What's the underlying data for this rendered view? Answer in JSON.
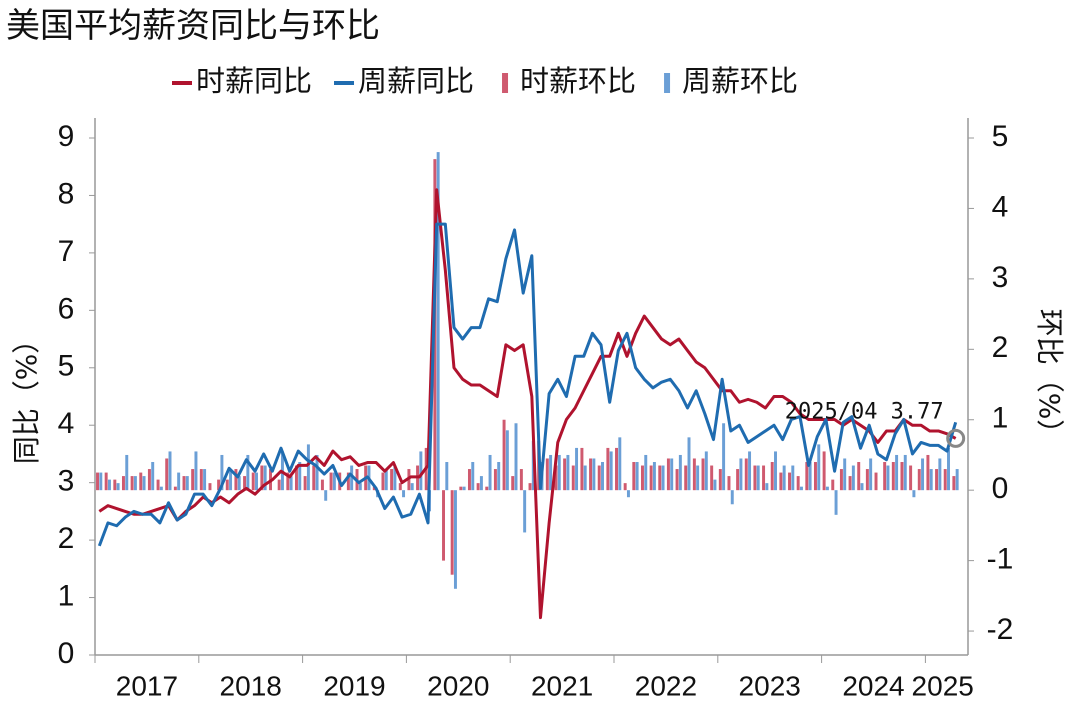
{
  "chart_data": {
    "type": "combo",
    "title": "美国平均薪资同比与环比",
    "ylabel": "同比（%）",
    "y2label": "环比（%）",
    "categories": [
      "2017",
      null,
      null,
      null,
      null,
      null,
      null,
      null,
      null,
      null,
      null,
      null,
      "2018",
      null,
      null,
      null,
      null,
      null,
      null,
      null,
      null,
      null,
      null,
      null,
      "2019",
      null,
      null,
      null,
      null,
      null,
      null,
      null,
      null,
      null,
      null,
      null,
      "2020",
      null,
      null,
      null,
      null,
      null,
      null,
      null,
      null,
      null,
      null,
      null,
      "2021",
      null,
      null,
      null,
      null,
      null,
      null,
      null,
      null,
      null,
      null,
      null,
      "2022",
      null,
      null,
      null,
      null,
      null,
      null,
      null,
      null,
      null,
      null,
      null,
      "2023",
      null,
      null,
      null,
      null,
      null,
      null,
      null,
      null,
      null,
      null,
      null,
      "2024",
      null,
      null,
      null,
      null,
      null,
      null,
      null,
      null,
      null,
      null,
      null,
      "2025",
      null,
      null,
      null
    ],
    "ylim": [
      0,
      9
    ],
    "yticks": [
      0,
      1,
      2,
      3,
      4,
      5,
      6,
      7,
      8,
      9
    ],
    "y2lim": [
      -2.34,
      5
    ],
    "y2ticks": [
      -2,
      -1,
      0,
      1,
      2,
      3,
      4,
      5
    ],
    "annotation": "2025/04 3.77",
    "series": [
      {
        "name": "时薪同比",
        "type": "line",
        "color": "#b0132e",
        "values": [
          2.5,
          2.6,
          2.55,
          2.5,
          2.45,
          2.45,
          2.5,
          2.55,
          2.6,
          2.35,
          2.5,
          2.6,
          2.75,
          2.65,
          2.75,
          2.65,
          2.8,
          2.9,
          2.8,
          2.95,
          3.05,
          3.2,
          3.1,
          3.3,
          3.3,
          3.45,
          3.3,
          3.55,
          3.4,
          3.45,
          3.3,
          3.35,
          3.35,
          3.2,
          3.35,
          3.0,
          3.1,
          3.1,
          3.3,
          8.1,
          6.7,
          5.0,
          4.8,
          4.7,
          4.7,
          4.6,
          4.5,
          5.4,
          5.3,
          5.4,
          4.5,
          0.65,
          2.3,
          3.7,
          4.1,
          4.3,
          4.6,
          4.9,
          5.2,
          5.2,
          5.6,
          5.2,
          5.6,
          5.9,
          5.7,
          5.5,
          5.4,
          5.5,
          5.3,
          5.1,
          5.0,
          4.8,
          4.6,
          4.6,
          4.4,
          4.45,
          4.4,
          4.3,
          4.5,
          4.5,
          4.4,
          4.2,
          4.1,
          4.1,
          4.1,
          4.1,
          4.0,
          4.1,
          4.0,
          3.9,
          3.7,
          3.9,
          3.9,
          4.1,
          4.0,
          4.0,
          3.9,
          3.9,
          3.85,
          3.77
        ]
      },
      {
        "name": "周薪同比",
        "type": "line",
        "color": "#1f6cb0",
        "values": [
          1.9,
          2.3,
          2.25,
          2.4,
          2.5,
          2.45,
          2.45,
          2.3,
          2.65,
          2.35,
          2.45,
          2.8,
          2.8,
          2.6,
          2.9,
          3.25,
          3.1,
          3.4,
          3.2,
          3.5,
          3.2,
          3.6,
          3.2,
          3.55,
          3.4,
          3.3,
          3.15,
          3.3,
          2.95,
          3.15,
          3.0,
          3.1,
          2.9,
          2.55,
          2.75,
          2.4,
          2.45,
          2.8,
          2.3,
          7.5,
          7.5,
          5.7,
          5.5,
          5.7,
          5.7,
          6.2,
          6.15,
          6.9,
          7.4,
          6.3,
          6.95,
          2.9,
          4.55,
          4.8,
          4.5,
          5.2,
          5.2,
          5.6,
          5.4,
          4.4,
          5.3,
          5.6,
          5.0,
          4.8,
          4.65,
          4.75,
          4.8,
          4.6,
          4.3,
          4.6,
          4.2,
          3.75,
          4.8,
          3.9,
          4.0,
          3.7,
          3.8,
          3.9,
          4.0,
          3.75,
          4.1,
          4.15,
          3.3,
          3.8,
          4.1,
          3.2,
          4.05,
          4.15,
          3.6,
          4.0,
          3.5,
          3.4,
          3.85,
          4.1,
          3.5,
          3.7,
          3.65,
          3.65,
          3.55,
          4.05
        ]
      },
      {
        "name": "时薪环比",
        "type": "bar",
        "axis": "y2",
        "color": "#cf5a6f",
        "values": [
          0.25,
          0.25,
          0.15,
          0.2,
          0.2,
          0.25,
          0.3,
          0.15,
          0.45,
          0.05,
          0.2,
          0.3,
          0.3,
          0.1,
          0.15,
          0.15,
          0.3,
          0.2,
          0.25,
          0.35,
          0.3,
          0.15,
          0.25,
          0.35,
          0.2,
          0.35,
          0.15,
          0.25,
          0.25,
          0.25,
          0.3,
          0.35,
          0.05,
          0.25,
          0.3,
          0.1,
          0.3,
          0.35,
          0.6,
          4.7,
          -1.0,
          -1.2,
          0.05,
          0.3,
          0.1,
          0.05,
          0.3,
          1.0,
          0.2,
          0.3,
          0.1,
          0.7,
          0.45,
          0.35,
          0.45,
          0.35,
          0.6,
          0.45,
          0.35,
          0.6,
          0.6,
          0.1,
          0.4,
          0.35,
          0.35,
          0.35,
          0.45,
          0.3,
          0.35,
          0.45,
          0.45,
          0.35,
          0.3,
          0.2,
          0.3,
          0.45,
          0.35,
          0.35,
          0.4,
          0.25,
          0.25,
          0.2,
          0.4,
          0.4,
          0.55,
          0.15,
          0.3,
          0.2,
          0.4,
          0.3,
          0.25,
          0.4,
          0.4,
          0.4,
          0.35,
          0.3,
          0.5,
          0.3,
          0.3,
          0.2
        ]
      },
      {
        "name": "周薪环比",
        "type": "bar",
        "axis": "y2",
        "color": "#6b9fd6",
        "values": [
          0.25,
          0.15,
          0.1,
          0.5,
          0.2,
          0.2,
          0.4,
          0.05,
          0.55,
          0.25,
          0.2,
          0.55,
          0.3,
          0.0,
          0.5,
          0.3,
          0.2,
          0.5,
          0.25,
          0.35,
          0.0,
          0.55,
          0.2,
          0.4,
          0.65,
          0.5,
          -0.15,
          0.25,
          0.0,
          0.35,
          0.1,
          0.35,
          -0.1,
          0.3,
          0.35,
          -0.1,
          0.1,
          0.55,
          -0.3,
          4.8,
          0.4,
          -1.4,
          0.05,
          0.4,
          0.2,
          0.5,
          0.4,
          0.85,
          0.95,
          -0.6,
          0.7,
          0.4,
          0.5,
          0.5,
          0.5,
          0.6,
          0.35,
          0.45,
          0.4,
          0.55,
          0.75,
          -0.1,
          0.4,
          0.5,
          0.4,
          0.35,
          0.45,
          0.5,
          0.75,
          0.35,
          0.55,
          0.15,
          0.95,
          -0.2,
          0.45,
          0.55,
          0.35,
          0.1,
          0.55,
          0.35,
          0.35,
          0.05,
          0.4,
          0.65,
          0.05,
          -0.35,
          0.45,
          0.35,
          0.1,
          0.45,
          0.0,
          0.35,
          0.5,
          0.5,
          -0.1,
          0.45,
          0.3,
          0.45,
          0.6,
          0.3
        ]
      }
    ]
  }
}
